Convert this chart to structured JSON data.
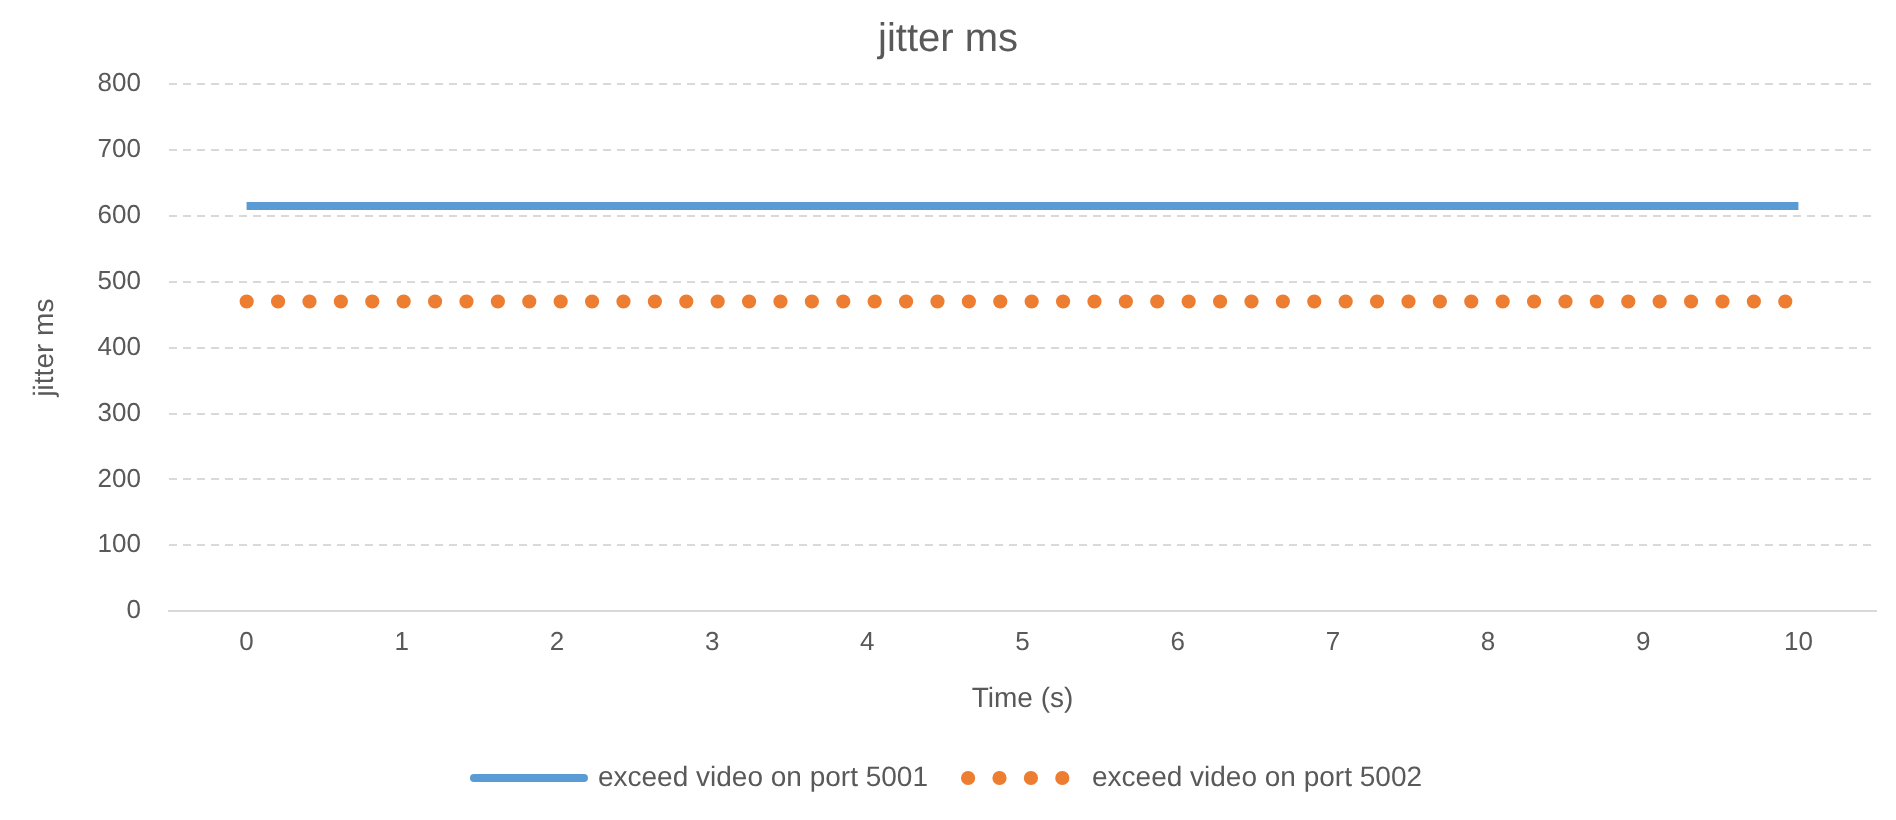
{
  "chart_data": {
    "type": "line",
    "title": "jitter ms",
    "xlabel": "Time (s)",
    "ylabel": "jitter ms",
    "categories": [
      "0",
      "1",
      "2",
      "3",
      "4",
      "5",
      "6",
      "7",
      "8",
      "9",
      "10"
    ],
    "series": [
      {
        "name": "exceed video on port 5001",
        "color": "#5b9bd5",
        "line_style": "solid",
        "values": [
          615,
          615,
          615,
          615,
          615,
          615,
          615,
          615,
          615,
          615,
          615
        ]
      },
      {
        "name": "exceed video on port 5002",
        "color": "#ed7d31",
        "line_style": "dotted",
        "values": [
          470,
          470,
          470,
          470,
          470,
          470,
          470,
          470,
          470,
          470,
          470
        ]
      }
    ],
    "ylim": [
      0,
      800
    ],
    "yticks": [
      0,
      100,
      200,
      300,
      400,
      500,
      600,
      700,
      800
    ],
    "grid": "y",
    "legend": "bottom",
    "marker": "none"
  }
}
